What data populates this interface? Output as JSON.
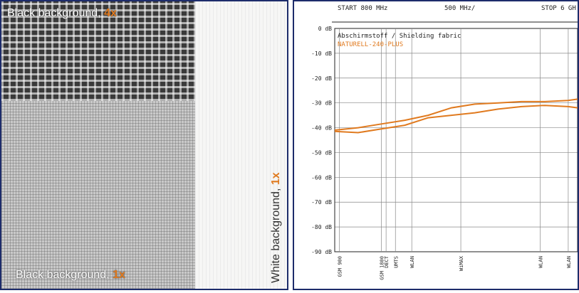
{
  "photo_panel": {
    "labels": {
      "black_4x_text": "Black background, ",
      "black_4x_mag": "4x",
      "black_1x_text": "Black background, ",
      "black_1x_mag": "1x",
      "white_1x_text": "White background, ",
      "white_1x_mag": "1x"
    },
    "colors": {
      "frame": "#1d2c6b",
      "magnification": "#e07a1f"
    }
  },
  "chart_data": {
    "type": "line",
    "top_labels": [
      "START 800 MHz",
      "500 MHz/",
      "STOP 6 GH"
    ],
    "title": "Abschirmstoff / Shielding fabric",
    "subtitle": "NATURELL-240-PLUS",
    "ylim": [
      -90,
      0
    ],
    "y_tick_values": [
      0,
      -10,
      -20,
      -30,
      -40,
      -50,
      -60,
      -70,
      -80,
      -90
    ],
    "y_tick_labels": [
      "0 dB",
      "-10 dB",
      "-20 dB",
      "-30 dB",
      "-40 dB",
      "-50 dB",
      "-60 dB",
      "-70 dB",
      "-80 dB",
      "-90 dB"
    ],
    "xlim": [
      800,
      6000
    ],
    "grid": true,
    "band_markers": [
      {
        "freq": 900,
        "label": "GSM 900"
      },
      {
        "freq": 1800,
        "label": "GSM 1800"
      },
      {
        "freq": 1900,
        "label": "DECT"
      },
      {
        "freq": 2100,
        "label": "UMTS"
      },
      {
        "freq": 2450,
        "label": "WLAN"
      },
      {
        "freq": 3500,
        "label": "WiMAX"
      },
      {
        "freq": 5200,
        "label": "WLAN"
      },
      {
        "freq": 5800,
        "label": "WLAN"
      }
    ],
    "series": [
      {
        "color": "#e07a1f",
        "x": [
          800,
          1300,
          1800,
          2300,
          2800,
          3300,
          3800,
          4300,
          4800,
          5300,
          5800,
          6000
        ],
        "y": [
          -41,
          -40,
          -38.5,
          -37,
          -35,
          -32,
          -30.5,
          -30,
          -29.5,
          -29.5,
          -29,
          -28.5
        ]
      },
      {
        "color": "#e07a1f",
        "x": [
          800,
          1300,
          1800,
          2300,
          2800,
          3300,
          3800,
          4300,
          4800,
          5300,
          5800,
          6000
        ],
        "y": [
          -41.5,
          -42,
          -40.5,
          -39,
          -36,
          -35,
          -34,
          -32.5,
          -31.5,
          -31,
          -31.5,
          -32
        ]
      }
    ]
  }
}
